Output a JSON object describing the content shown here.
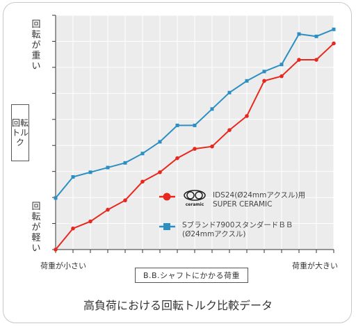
{
  "chart_data": {
    "type": "line",
    "title": "高負荷における回転トルク比較データ",
    "xlabel": "B.B.シャフトにかかる荷重",
    "ylabel": "回転トルク",
    "y_top_label": "回転が重い",
    "y_bottom_label": "回転が軽い",
    "x_left_label": "荷重が小さい",
    "x_right_label": "荷重が大きい",
    "grid": true,
    "legend_position": "bottom-right inside plot",
    "ylim": [
      0,
      10
    ],
    "series": [
      {
        "name": "IDS24(Ø24mmアクスル)用 SUPER CERAMIC",
        "legend_line1": "IDS24(Ø24mmアクスル)用",
        "legend_line2": "SUPER CERAMIC",
        "logo_text": "ceramic",
        "color": "#e8281e",
        "marker": "circle",
        "x": [
          0,
          1,
          2,
          3,
          4,
          5,
          6,
          7,
          8,
          9,
          10,
          11,
          12,
          13,
          14,
          15,
          16
        ],
        "values": [
          0.0,
          0.9,
          1.2,
          1.7,
          2.1,
          2.9,
          3.3,
          3.9,
          4.3,
          4.4,
          5.1,
          5.7,
          7.2,
          7.4,
          8.1,
          8.1,
          8.8
        ]
      },
      {
        "name": "Sブランド7900スタンダードBB (Ø24mmアクスル)",
        "legend_line1": "Sブランド7900スタンダードＢＢ",
        "legend_line2": "(Ø24mmアクスル)",
        "color": "#2b8fc2",
        "marker": "square",
        "x": [
          0,
          1,
          2,
          3,
          4,
          5,
          6,
          7,
          8,
          9,
          10,
          11,
          12,
          13,
          14,
          15,
          16
        ],
        "values": [
          2.2,
          3.1,
          3.3,
          3.5,
          3.7,
          4.1,
          4.6,
          5.3,
          5.3,
          6.0,
          6.7,
          7.2,
          7.6,
          7.9,
          9.2,
          9.1,
          9.4
        ]
      }
    ]
  }
}
